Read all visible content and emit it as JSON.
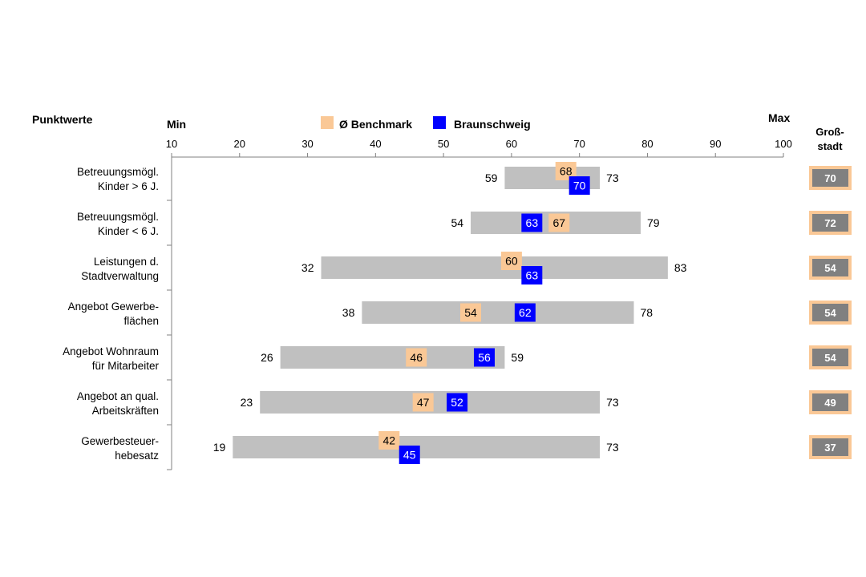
{
  "chart_data": {
    "type": "bar",
    "subtype": "range-with-markers",
    "row_header": "Punktwerte",
    "axis_min_label": "Min",
    "axis_max_label": "Max",
    "xlim": [
      10,
      100
    ],
    "ticks": [
      10,
      20,
      30,
      40,
      50,
      60,
      70,
      80,
      90,
      100
    ],
    "legend": {
      "placement": "top-center",
      "items": [
        {
          "name": "Ø Benchmark",
          "color": "#FAC896"
        },
        {
          "name": "Braunschweig",
          "color": "#0000FF"
        }
      ]
    },
    "side_column_title": [
      "Groß-",
      "stadt"
    ],
    "colors": {
      "range_bar": "#C0C0C0",
      "benchmark": "#FAC896",
      "city": "#0000FF",
      "side_box_fill": "#808080",
      "side_box_border": "#FAC896"
    },
    "rows": [
      {
        "label": [
          "Betreuungsmögl.",
          "Kinder > 6 J."
        ],
        "min": 59,
        "max": 73,
        "benchmark": 68,
        "city": 70,
        "grossstadt": 70
      },
      {
        "label": [
          "Betreuungsmögl.",
          "Kinder < 6 J."
        ],
        "min": 54,
        "max": 79,
        "benchmark": 67,
        "city": 63,
        "grossstadt": 72
      },
      {
        "label": [
          "Leistungen d.",
          "Stadtverwaltung"
        ],
        "min": 32,
        "max": 83,
        "benchmark": 60,
        "city": 63,
        "grossstadt": 54
      },
      {
        "label": [
          "Angebot Gewerbe-",
          "flächen"
        ],
        "min": 38,
        "max": 78,
        "benchmark": 54,
        "city": 62,
        "grossstadt": 54
      },
      {
        "label": [
          "Angebot Wohnraum",
          "für Mitarbeiter"
        ],
        "min": 26,
        "max": 59,
        "benchmark": 46,
        "city": 56,
        "grossstadt": 54
      },
      {
        "label": [
          "Angebot an qual.",
          "Arbeitskräften"
        ],
        "min": 23,
        "max": 73,
        "benchmark": 47,
        "city": 52,
        "grossstadt": 49
      },
      {
        "label": [
          "Gewerbesteuer-",
          "hebesatz"
        ],
        "min": 19,
        "max": 73,
        "benchmark": 42,
        "city": 45,
        "grossstadt": 37
      }
    ]
  }
}
